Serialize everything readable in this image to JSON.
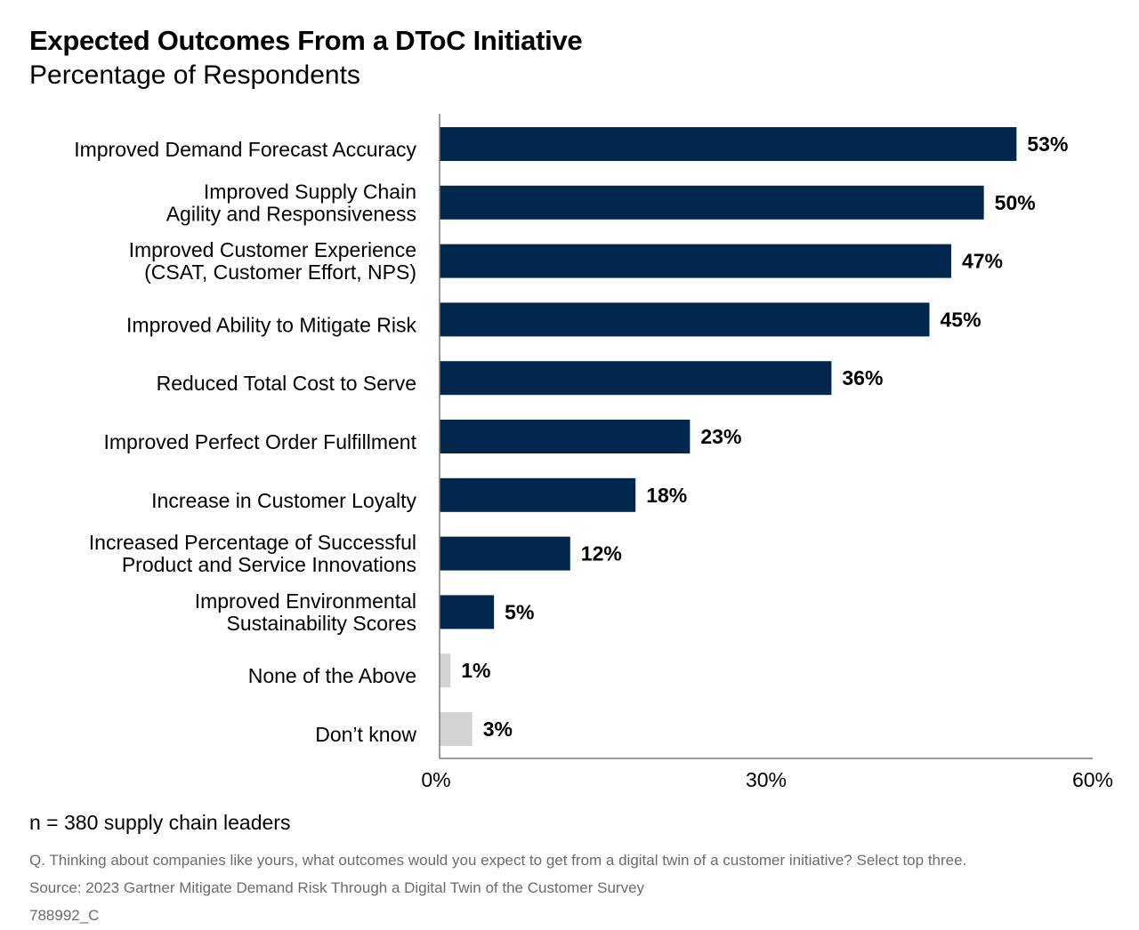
{
  "chart_data": {
    "type": "bar",
    "orientation": "horizontal",
    "title": "Expected Outcomes From a DToC Initiative",
    "subtitle": "Percentage of Respondents",
    "categories": [
      [
        "Improved Demand Forecast Accuracy"
      ],
      [
        "Improved Supply Chain",
        "Agility and Responsiveness"
      ],
      [
        "Improved Customer Experience",
        "(CSAT, Customer Effort, NPS)"
      ],
      [
        "Improved Ability to Mitigate Risk"
      ],
      [
        "Reduced Total Cost to Serve"
      ],
      [
        "Improved Perfect Order Fulfillment"
      ],
      [
        "Increase in Customer Loyalty"
      ],
      [
        "Increased Percentage of Successful",
        "Product and Service Innovations"
      ],
      [
        "Improved Environmental",
        "Sustainability Scores"
      ],
      [
        "None of the Above"
      ],
      [
        "Don’t know"
      ]
    ],
    "values": [
      53,
      50,
      47,
      45,
      36,
      23,
      18,
      12,
      5,
      1,
      3
    ],
    "data_labels": [
      "53%",
      "50%",
      "47%",
      "45%",
      "36%",
      "23%",
      "18%",
      "12%",
      "5%",
      "1%",
      "3%"
    ],
    "bar_colors": [
      "#00284f",
      "#00284f",
      "#00284f",
      "#00284f",
      "#00284f",
      "#00284f",
      "#00284f",
      "#00284f",
      "#00284f",
      "#d3d3d3",
      "#d3d3d3"
    ],
    "xlim": [
      0,
      60
    ],
    "xticks": [
      0,
      30,
      60
    ],
    "xtick_labels": [
      "0%",
      "30%",
      "60%"
    ],
    "xlabel": "",
    "ylabel": "",
    "grid": false,
    "legend": "none"
  },
  "footer": {
    "sample": "n = 380 supply chain leaders",
    "question": "Q. Thinking about companies like yours, what outcomes would you expect to get from a digital twin of a customer initiative? Select top three.",
    "source": "Source: 2023 Gartner Mitigate Demand Risk Through a Digital Twin of the Customer Survey",
    "id": "788992_C"
  }
}
